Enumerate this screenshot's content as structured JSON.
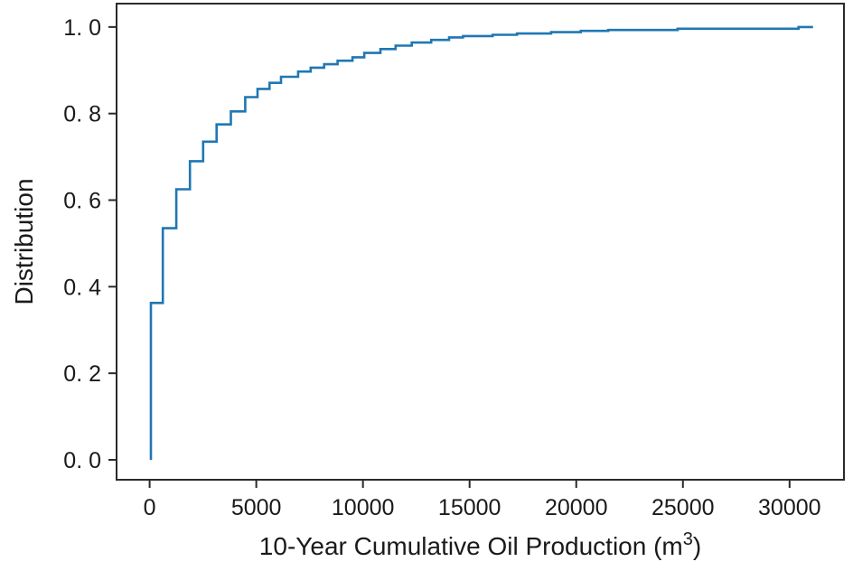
{
  "figure": {
    "background": "#ffffff",
    "axis_color": "#2a2a2a",
    "text_color": "#1a1a1a"
  },
  "chart_data": {
    "type": "line",
    "subtype": "ecdf-step",
    "title": "",
    "xlabel": "10-Year Cumulative Oil Production (m³)",
    "xlabel_parts": {
      "main": "10-Year Cumulative Oil Production (m",
      "sup": "3",
      "close": ")"
    },
    "ylabel": "Distribution",
    "legend": "none",
    "grid": "off",
    "xlim": [
      -1550,
      32550
    ],
    "ylim": [
      -0.046,
      1.054
    ],
    "x_ticks": {
      "values": [
        0,
        5000,
        10000,
        15000,
        20000,
        25000,
        30000
      ],
      "labels": [
        "0",
        "5000",
        "10000",
        "15000",
        "20000",
        "25000",
        "30000"
      ]
    },
    "y_ticks": {
      "values": [
        0.0,
        0.2,
        0.4,
        0.6,
        0.8,
        1.0
      ],
      "labels": [
        "0. 0",
        "0. 2",
        "0. 4",
        "0. 6",
        "0. 8",
        "1. 0"
      ]
    },
    "line_color": "#1f77b4",
    "line_width": 2.6,
    "series": [
      {
        "name": "empirical-cdf",
        "start": [
          60,
          0.0
        ],
        "x_end": 31100,
        "points": [
          [
            60,
            0.3625
          ],
          [
            620,
            0.535
          ],
          [
            1250,
            0.625
          ],
          [
            1890,
            0.69
          ],
          [
            2510,
            0.735
          ],
          [
            3140,
            0.775
          ],
          [
            3810,
            0.805
          ],
          [
            4480,
            0.838
          ],
          [
            5060,
            0.857
          ],
          [
            5620,
            0.871
          ],
          [
            6160,
            0.885
          ],
          [
            6960,
            0.897
          ],
          [
            7550,
            0.906
          ],
          [
            8180,
            0.914
          ],
          [
            8810,
            0.922
          ],
          [
            9510,
            0.93
          ],
          [
            10060,
            0.94
          ],
          [
            10820,
            0.949
          ],
          [
            11530,
            0.957
          ],
          [
            12290,
            0.964
          ],
          [
            13200,
            0.97
          ],
          [
            14040,
            0.976
          ],
          [
            14690,
            0.979
          ],
          [
            16080,
            0.982
          ],
          [
            17220,
            0.985
          ],
          [
            18820,
            0.988
          ],
          [
            20210,
            0.991
          ],
          [
            21500,
            0.993
          ],
          [
            24750,
            0.996
          ],
          [
            30420,
            1.0
          ]
        ]
      }
    ]
  }
}
